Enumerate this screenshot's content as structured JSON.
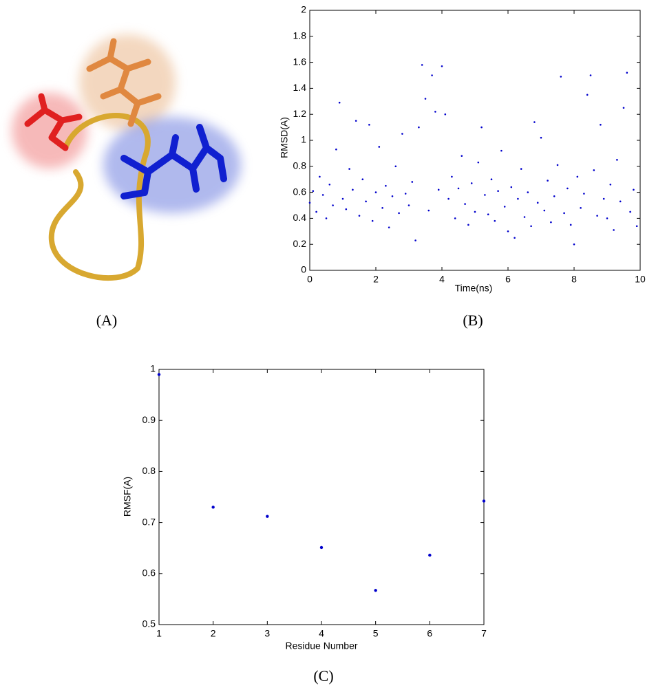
{
  "chart_data": [
    {
      "type": "scatter",
      "caption": "(B)",
      "xlabel": "Time(ns)",
      "ylabel": "RMSD(A)",
      "x": [
        0,
        0.1,
        0.2,
        0.3,
        0.4,
        0.5,
        0.6,
        0.7,
        0.8,
        0.9,
        1,
        1.1,
        1.2,
        1.3,
        1.4,
        1.5,
        1.6,
        1.7,
        1.8,
        1.9,
        2,
        2.1,
        2.2,
        2.3,
        2.4,
        2.5,
        2.6,
        2.7,
        2.8,
        2.9,
        3,
        3.1,
        3.2,
        3.3,
        3.4,
        3.5,
        3.6,
        3.7,
        3.8,
        3.9,
        4,
        4.1,
        4.2,
        4.3,
        4.4,
        4.5,
        4.6,
        4.7,
        4.8,
        4.9,
        5,
        5.1,
        5.2,
        5.3,
        5.4,
        5.5,
        5.6,
        5.7,
        5.8,
        5.9,
        6,
        6.1,
        6.2,
        6.3,
        6.4,
        6.5,
        6.6,
        6.7,
        6.8,
        6.9,
        7,
        7.1,
        7.2,
        7.3,
        7.4,
        7.5,
        7.6,
        7.7,
        7.8,
        7.9,
        8,
        8.1,
        8.2,
        8.3,
        8.4,
        8.5,
        8.6,
        8.7,
        8.8,
        8.9,
        9,
        9.1,
        9.2,
        9.3,
        9.4,
        9.5,
        9.6,
        9.7,
        9.8,
        9.9
      ],
      "series": [
        {
          "color": "#0000cc",
          "values": [
            0.52,
            0.61,
            0.45,
            0.72,
            0.58,
            0.4,
            0.66,
            0.5,
            0.93,
            1.29,
            0.55,
            0.47,
            0.78,
            0.62,
            1.15,
            0.42,
            0.7,
            0.53,
            1.12,
            0.38,
            0.6,
            0.95,
            0.48,
            0.65,
            0.33,
            0.57,
            0.8,
            0.44,
            1.05,
            0.59,
            0.5,
            0.68,
            0.23,
            1.1,
            1.58,
            1.32,
            0.46,
            1.5,
            1.22,
            0.62,
            1.57,
            1.2,
            0.55,
            0.72,
            0.4,
            0.63,
            0.88,
            0.51,
            0.35,
            0.67,
            0.45,
            0.83,
            1.1,
            0.58,
            0.43,
            0.7,
            0.38,
            0.61,
            0.92,
            0.49,
            0.3,
            0.64,
            0.25,
            0.55,
            0.78,
            0.41,
            0.6,
            0.34,
            1.14,
            0.52,
            1.02,
            0.46,
            0.69,
            0.37,
            0.57,
            0.81,
            1.49,
            0.44,
            0.63,
            0.35,
            0.2,
            0.72,
            0.48,
            0.59,
            1.35,
            1.5,
            0.77,
            0.42,
            1.12,
            0.55,
            0.4,
            0.66,
            0.31,
            0.85,
            0.53,
            1.25,
            1.52,
            0.45,
            0.62,
            0.34
          ]
        }
      ],
      "xlim": [
        0,
        10
      ],
      "xticks": [
        0,
        2,
        4,
        6,
        8,
        10
      ],
      "ylim": [
        0,
        2
      ],
      "yticks": [
        0,
        0.2,
        0.4,
        0.6,
        0.8,
        1,
        1.2,
        1.4,
        1.6,
        1.8,
        2
      ]
    },
    {
      "type": "scatter",
      "caption": "(C)",
      "xlabel": "Residue Number",
      "ylabel": "RMSF(A)",
      "x": [
        1,
        2,
        3,
        4,
        5,
        6,
        7
      ],
      "series": [
        {
          "color": "#0000cc",
          "values": [
            0.99,
            0.73,
            0.712,
            0.651,
            0.567,
            0.636,
            0.742
          ]
        }
      ],
      "xlim": [
        1,
        7
      ],
      "xticks": [
        1,
        2,
        3,
        4,
        5,
        6,
        7
      ],
      "ylim": [
        0.5,
        1
      ],
      "yticks": [
        0.5,
        0.6,
        0.7,
        0.8,
        0.9,
        1
      ]
    }
  ],
  "panel_a": {
    "caption": "(A)"
  }
}
